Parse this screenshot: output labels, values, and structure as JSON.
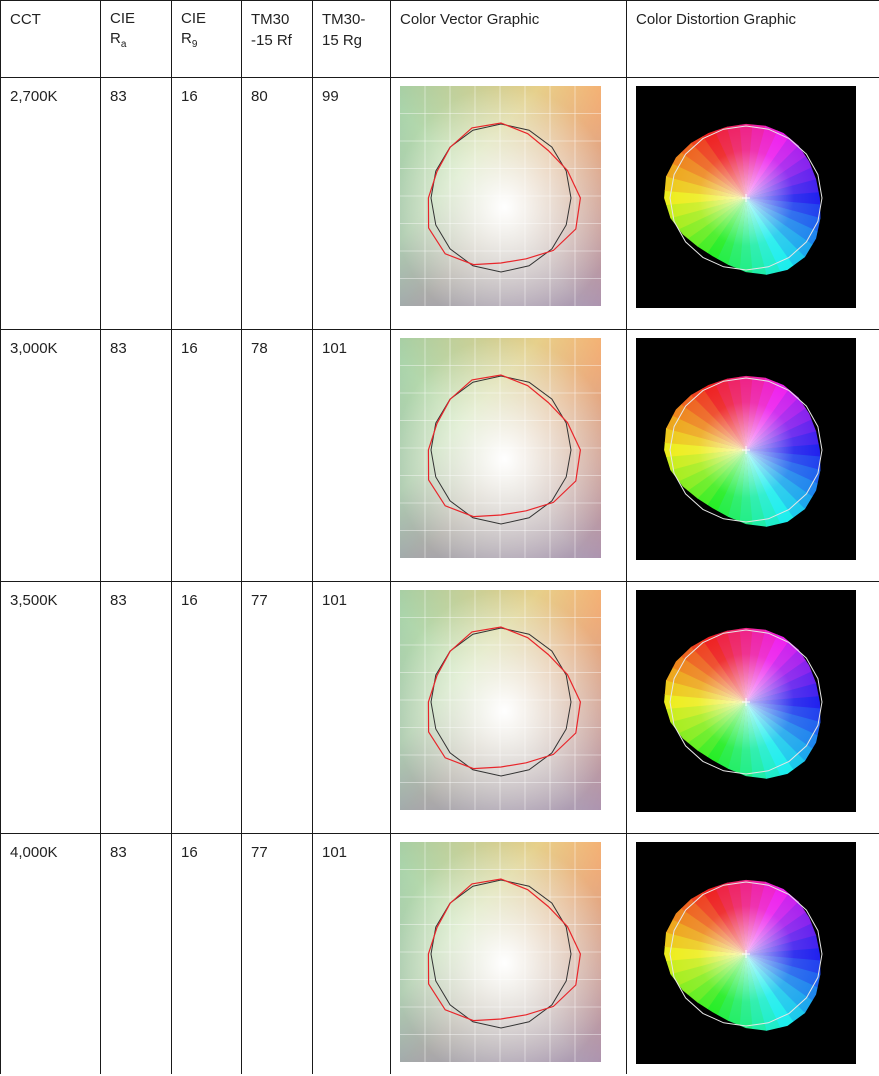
{
  "headers": {
    "cct": "CCT",
    "cie_ra_prefix": "CIE",
    "cie_ra_main": "R",
    "cie_ra_sub": "a",
    "cie_r9_prefix": "CIE",
    "cie_r9_main": "R",
    "cie_r9_sub": "9",
    "rf_line1": "TM30",
    "rf_line2": "-15 Rf",
    "rg_line1": "TM30-",
    "rg_line2": "15 Rg",
    "vector": "Color Vector Graphic",
    "distortion": "Color Distortion Graphic"
  },
  "rows": [
    {
      "cct": "2,700K",
      "ra": "83",
      "r9": "16",
      "rf": "80",
      "rg": "99"
    },
    {
      "cct": "3,000K",
      "ra": "83",
      "r9": "16",
      "rf": "78",
      "rg": "101"
    },
    {
      "cct": "3,500K",
      "ra": "83",
      "r9": "16",
      "rf": "77",
      "rg": "101"
    },
    {
      "cct": "4,000K",
      "ra": "83",
      "r9": "16",
      "rf": "77",
      "rg": "101"
    }
  ],
  "colors": {
    "border": "#1a1a1a",
    "reference_outline": "#333333",
    "test_outline": "#e8262b",
    "distortion_background": "#000000",
    "distortion_reference": "#e6e6e6"
  }
}
